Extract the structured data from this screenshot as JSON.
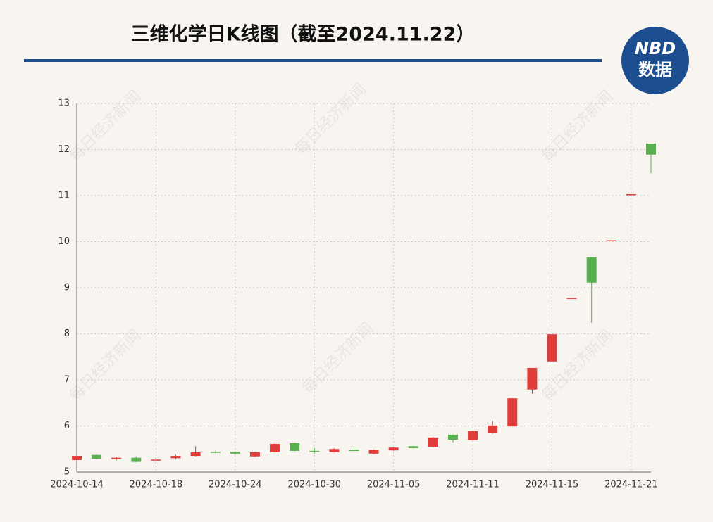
{
  "chart_data": {
    "type": "candlestick",
    "title": "三维化学日K线图（截至2024.11.22）",
    "logo": {
      "top": "NBD",
      "bottom": "数据"
    },
    "watermark": "每日经济新闻",
    "categories": [
      "2024-10-14",
      null,
      null,
      null,
      "2024-10-18",
      null,
      null,
      null,
      "2024-10-24",
      null,
      null,
      null,
      "2024-10-30",
      null,
      null,
      null,
      "2024-11-05",
      null,
      null,
      null,
      "2024-11-11",
      null,
      null,
      null,
      "2024-11-15",
      null,
      null,
      null,
      "2024-11-21",
      null
    ],
    "open": [
      5.26,
      5.37,
      5.28,
      5.31,
      5.25,
      5.3,
      5.35,
      5.44,
      5.44,
      5.34,
      5.43,
      5.63,
      5.46,
      5.43,
      5.48,
      5.4,
      5.47,
      5.56,
      5.55,
      5.81,
      5.69,
      5.84,
      5.99,
      6.79,
      7.4,
      8.78,
      9.66,
      10.03,
      11.03,
      12.13
    ],
    "high": [
      5.36,
      5.38,
      5.33,
      5.34,
      5.32,
      5.37,
      5.56,
      5.46,
      5.45,
      5.44,
      5.62,
      5.64,
      5.52,
      5.52,
      5.56,
      5.49,
      5.54,
      5.57,
      5.76,
      5.82,
      5.9,
      6.11,
      6.6,
      7.26,
      7.99,
      8.78,
      9.66,
      10.03,
      11.03,
      12.13
    ],
    "low": [
      5.25,
      5.28,
      5.25,
      5.21,
      5.18,
      5.28,
      5.34,
      5.41,
      5.38,
      5.33,
      5.42,
      5.45,
      5.4,
      5.42,
      5.46,
      5.39,
      5.46,
      5.51,
      5.54,
      5.64,
      5.68,
      5.83,
      5.99,
      6.7,
      7.4,
      8.78,
      8.24,
      10.03,
      11.03,
      11.49
    ],
    "close": [
      5.35,
      5.29,
      5.31,
      5.22,
      5.27,
      5.35,
      5.43,
      5.42,
      5.4,
      5.43,
      5.61,
      5.46,
      5.45,
      5.5,
      5.47,
      5.48,
      5.53,
      5.52,
      5.75,
      5.7,
      5.89,
      6.01,
      6.6,
      7.26,
      7.99,
      8.78,
      9.11,
      10.03,
      11.03,
      11.89
    ],
    "up_color": "#e03c3a",
    "down_color": "#5aaf50",
    "ylim": [
      5,
      13
    ],
    "yticks": [
      5,
      6,
      7,
      8,
      9,
      10,
      11,
      12,
      13
    ],
    "grid": true
  }
}
